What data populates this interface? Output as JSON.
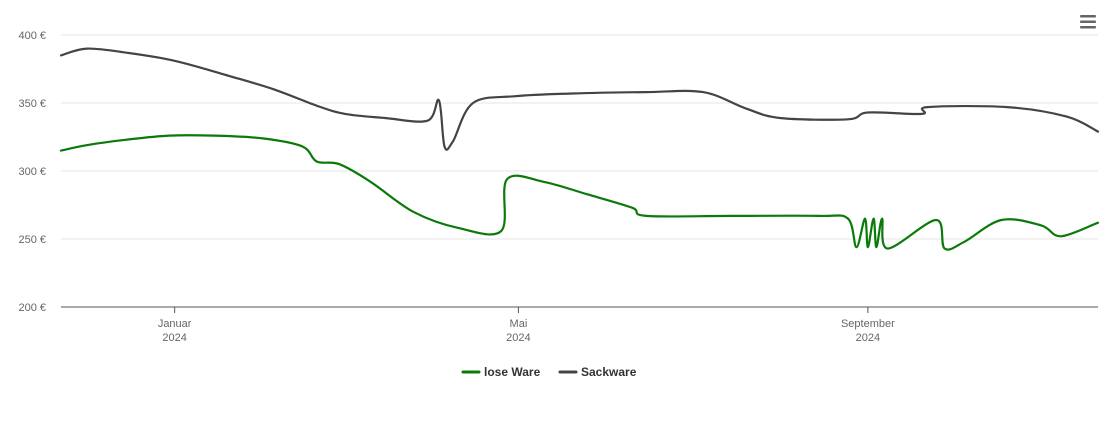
{
  "chart_data": {
    "type": "line",
    "title": "",
    "xlabel": "",
    "ylabel": "",
    "ylim": [
      200,
      400
    ],
    "y_ticks": [
      {
        "value": 200,
        "label": "200 €"
      },
      {
        "value": 250,
        "label": "250 €"
      },
      {
        "value": 300,
        "label": "300 €"
      },
      {
        "value": 350,
        "label": "350 €"
      },
      {
        "value": 400,
        "label": "400 €"
      }
    ],
    "x_range": [
      "2023-11-22",
      "2024-11-21"
    ],
    "x_ticks": [
      {
        "date": "2024-01-01",
        "month": "Januar",
        "year": "2024"
      },
      {
        "date": "2024-05-01",
        "month": "Mai",
        "year": "2024"
      },
      {
        "date": "2024-09-01",
        "month": "September",
        "year": "2024"
      }
    ],
    "grid": true,
    "legend_position": "bottom-center",
    "series": [
      {
        "name": "lose Ware",
        "color": "#0a7a0a",
        "points": [
          [
            "2023-11-22",
            315
          ],
          [
            "2023-12-01",
            319
          ],
          [
            "2023-12-15",
            323
          ],
          [
            "2023-12-30",
            326
          ],
          [
            "2024-01-15",
            326
          ],
          [
            "2024-02-01",
            324
          ],
          [
            "2024-02-15",
            318
          ],
          [
            "2024-02-20",
            307
          ],
          [
            "2024-02-28",
            305
          ],
          [
            "2024-03-10",
            292
          ],
          [
            "2024-03-25",
            270
          ],
          [
            "2024-04-10",
            258
          ],
          [
            "2024-04-25",
            256
          ],
          [
            "2024-04-27",
            294
          ],
          [
            "2024-05-10",
            292
          ],
          [
            "2024-05-25",
            283
          ],
          [
            "2024-06-10",
            273
          ],
          [
            "2024-06-15",
            267
          ],
          [
            "2024-07-15",
            267
          ],
          [
            "2024-08-15",
            267
          ],
          [
            "2024-08-25",
            265
          ],
          [
            "2024-08-28",
            244
          ],
          [
            "2024-08-31",
            265
          ],
          [
            "2024-09-01",
            244
          ],
          [
            "2024-09-03",
            265
          ],
          [
            "2024-09-04",
            244
          ],
          [
            "2024-09-06",
            265
          ],
          [
            "2024-09-08",
            243
          ],
          [
            "2024-09-25",
            264
          ],
          [
            "2024-09-28",
            243
          ],
          [
            "2024-10-05",
            248
          ],
          [
            "2024-10-18",
            264
          ],
          [
            "2024-11-01",
            260
          ],
          [
            "2024-11-08",
            252
          ],
          [
            "2024-11-21",
            262
          ]
        ]
      },
      {
        "name": "Sackware",
        "color": "#444444",
        "points": [
          [
            "2023-11-22",
            385
          ],
          [
            "2023-12-01",
            390
          ],
          [
            "2023-12-15",
            387
          ],
          [
            "2024-01-01",
            381
          ],
          [
            "2024-01-20",
            370
          ],
          [
            "2024-02-05",
            360
          ],
          [
            "2024-02-20",
            348
          ],
          [
            "2024-03-01",
            342
          ],
          [
            "2024-03-15",
            339
          ],
          [
            "2024-03-30",
            337
          ],
          [
            "2024-04-03",
            352
          ],
          [
            "2024-04-05",
            318
          ],
          [
            "2024-04-08",
            322
          ],
          [
            "2024-04-15",
            350
          ],
          [
            "2024-04-30",
            355
          ],
          [
            "2024-05-20",
            357
          ],
          [
            "2024-06-15",
            358
          ],
          [
            "2024-07-05",
            358
          ],
          [
            "2024-07-20",
            346
          ],
          [
            "2024-08-01",
            339
          ],
          [
            "2024-08-25",
            338
          ],
          [
            "2024-09-01",
            343
          ],
          [
            "2024-09-20",
            342
          ],
          [
            "2024-09-22",
            347
          ],
          [
            "2024-10-20",
            347
          ],
          [
            "2024-11-10",
            340
          ],
          [
            "2024-11-21",
            329
          ]
        ]
      }
    ]
  }
}
